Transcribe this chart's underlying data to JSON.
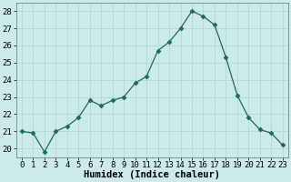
{
  "x": [
    0,
    1,
    2,
    3,
    4,
    5,
    6,
    7,
    8,
    9,
    10,
    11,
    12,
    13,
    14,
    15,
    16,
    17,
    18,
    19,
    20,
    21,
    22,
    23
  ],
  "y": [
    21.0,
    20.9,
    19.8,
    21.0,
    21.3,
    21.8,
    22.8,
    22.5,
    22.8,
    23.0,
    23.8,
    24.2,
    25.7,
    26.2,
    27.0,
    28.0,
    27.7,
    27.2,
    25.3,
    23.1,
    21.8,
    21.1,
    20.9,
    20.2
  ],
  "line_color": "#1a6b5a",
  "marker": "D",
  "marker_size": 2.5,
  "bg_color": "#cceaea",
  "grid_major_color": "#aad4d4",
  "grid_minor_color": "#bbdddd",
  "xlabel": "Humidex (Indice chaleur)",
  "ylim": [
    19.5,
    28.5
  ],
  "xlim": [
    -0.5,
    23.5
  ],
  "yticks": [
    20,
    21,
    22,
    23,
    24,
    25,
    26,
    27,
    28
  ],
  "xticks": [
    0,
    1,
    2,
    3,
    4,
    5,
    6,
    7,
    8,
    9,
    10,
    11,
    12,
    13,
    14,
    15,
    16,
    17,
    18,
    19,
    20,
    21,
    22,
    23
  ],
  "label_fontsize": 7.5,
  "tick_fontsize": 6.5
}
